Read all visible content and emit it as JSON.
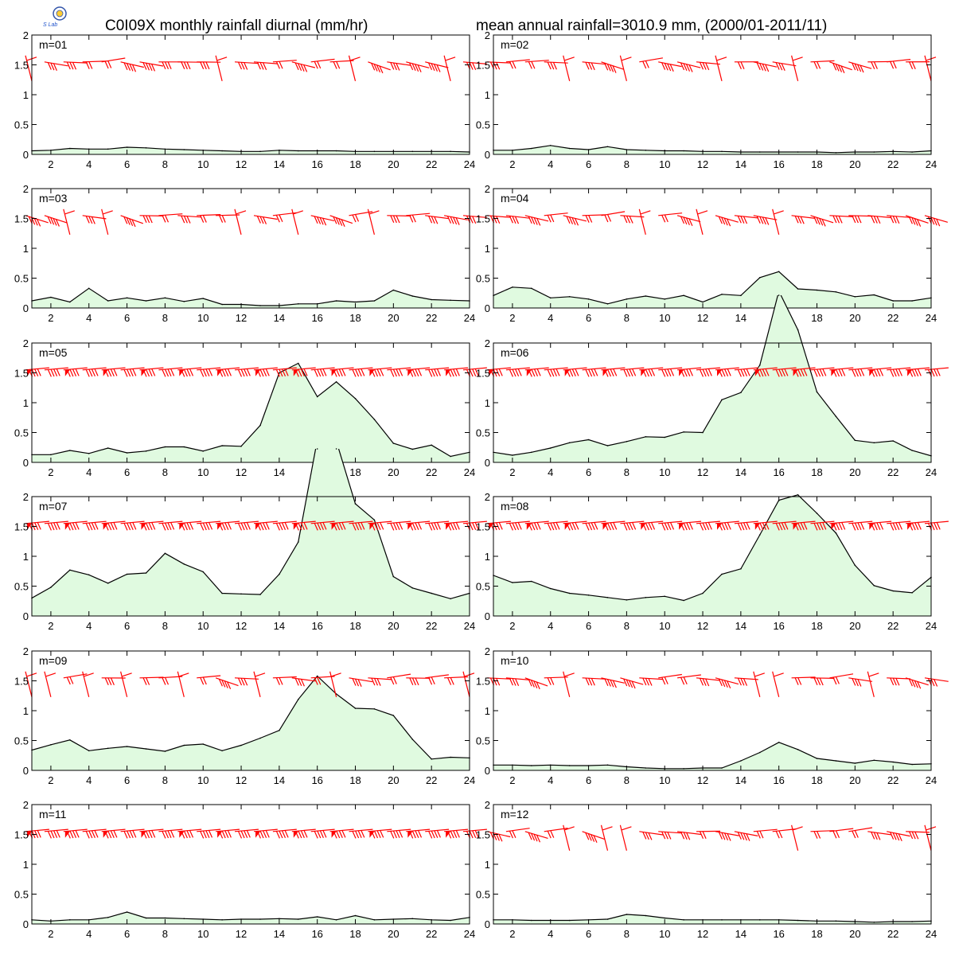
{
  "title_left": "C0I09X monthly rainfall diurnal (mm/hr)",
  "title_right": "mean annual rainfall=3010.9 mm, (2000/01-2011/11)",
  "logo": {
    "text": "S Lab"
  },
  "colors": {
    "fill": "#e0fae0",
    "line": "#000000",
    "wind": "#ff0000",
    "frame": "#000000"
  },
  "chart_data": {
    "type": "area",
    "x": [
      1,
      2,
      3,
      4,
      5,
      6,
      7,
      8,
      9,
      10,
      11,
      12,
      13,
      14,
      15,
      16,
      17,
      18,
      19,
      20,
      21,
      22,
      23,
      24
    ],
    "xticks": [
      2,
      4,
      6,
      8,
      10,
      12,
      14,
      16,
      18,
      20,
      22,
      24
    ],
    "yticks": [
      0,
      0.5,
      1,
      1.5,
      2
    ],
    "ytick_labels": [
      "0",
      "0.5",
      "1",
      "1.5",
      "2"
    ],
    "xlim": [
      1,
      24
    ],
    "ylim": [
      0,
      2
    ],
    "wind_barb_level": 1.55,
    "panels": [
      {
        "label": "m=01",
        "values": [
          0.06,
          0.07,
          0.1,
          0.09,
          0.09,
          0.12,
          0.11,
          0.09,
          0.08,
          0.07,
          0.06,
          0.05,
          0.05,
          0.07,
          0.06,
          0.06,
          0.06,
          0.05,
          0.05,
          0.05,
          0.05,
          0.05,
          0.05,
          0.04
        ]
      },
      {
        "label": "m=02",
        "values": [
          0.07,
          0.07,
          0.1,
          0.15,
          0.1,
          0.08,
          0.13,
          0.08,
          0.07,
          0.06,
          0.06,
          0.05,
          0.05,
          0.04,
          0.04,
          0.04,
          0.04,
          0.04,
          0.03,
          0.04,
          0.04,
          0.05,
          0.04,
          0.06
        ]
      },
      {
        "label": "m=03",
        "values": [
          0.12,
          0.18,
          0.1,
          0.33,
          0.12,
          0.17,
          0.12,
          0.17,
          0.11,
          0.16,
          0.06,
          0.06,
          0.04,
          0.04,
          0.07,
          0.07,
          0.12,
          0.1,
          0.12,
          0.3,
          0.2,
          0.14,
          0.13,
          0.12
        ]
      },
      {
        "label": "m=04",
        "values": [
          0.21,
          0.35,
          0.33,
          0.17,
          0.19,
          0.15,
          0.07,
          0.15,
          0.2,
          0.15,
          0.21,
          0.1,
          0.23,
          0.21,
          0.51,
          0.61,
          0.32,
          0.3,
          0.27,
          0.19,
          0.22,
          0.12,
          0.12,
          0.17
        ]
      },
      {
        "label": "m=05",
        "values": [
          0.13,
          0.13,
          0.2,
          0.15,
          0.24,
          0.16,
          0.19,
          0.26,
          0.26,
          0.19,
          0.28,
          0.27,
          0.62,
          1.5,
          1.66,
          1.1,
          1.35,
          1.07,
          0.72,
          0.32,
          0.22,
          0.29,
          0.1,
          0.17
        ]
      },
      {
        "label": "m=06",
        "values": [
          0.17,
          0.12,
          0.17,
          0.24,
          0.33,
          0.38,
          0.28,
          0.35,
          0.43,
          0.42,
          0.51,
          0.5,
          1.05,
          1.17,
          1.63,
          2.87,
          2.22,
          1.18,
          0.77,
          0.37,
          0.33,
          0.36,
          0.2,
          0.11
        ]
      },
      {
        "label": "m=07",
        "values": [
          0.3,
          0.48,
          0.77,
          0.69,
          0.55,
          0.7,
          0.72,
          1.05,
          0.87,
          0.74,
          0.38,
          0.37,
          0.36,
          0.7,
          1.24,
          2.95,
          2.93,
          1.88,
          1.61,
          0.66,
          0.47,
          0.38,
          0.29,
          0.38
        ]
      },
      {
        "label": "m=08",
        "values": [
          0.68,
          0.56,
          0.58,
          0.46,
          0.38,
          0.35,
          0.31,
          0.27,
          0.31,
          0.33,
          0.26,
          0.38,
          0.7,
          0.79,
          1.36,
          1.94,
          2.03,
          1.72,
          1.39,
          0.85,
          0.51,
          0.42,
          0.39,
          0.65
        ]
      },
      {
        "label": "m=09",
        "values": [
          0.34,
          0.43,
          0.51,
          0.33,
          0.37,
          0.4,
          0.36,
          0.32,
          0.42,
          0.44,
          0.33,
          0.42,
          0.54,
          0.67,
          1.19,
          1.58,
          1.28,
          1.04,
          1.03,
          0.92,
          0.52,
          0.19,
          0.22,
          0.21
        ]
      },
      {
        "label": "m=10",
        "values": [
          0.09,
          0.09,
          0.08,
          0.09,
          0.08,
          0.08,
          0.09,
          0.06,
          0.04,
          0.03,
          0.03,
          0.04,
          0.04,
          0.16,
          0.3,
          0.47,
          0.35,
          0.2,
          0.16,
          0.12,
          0.17,
          0.14,
          0.1,
          0.11
        ]
      },
      {
        "label": "m=11",
        "values": [
          0.07,
          0.05,
          0.07,
          0.07,
          0.11,
          0.2,
          0.1,
          0.1,
          0.09,
          0.08,
          0.07,
          0.08,
          0.08,
          0.09,
          0.08,
          0.12,
          0.07,
          0.14,
          0.07,
          0.08,
          0.09,
          0.07,
          0.06,
          0.11
        ]
      },
      {
        "label": "m=12",
        "values": [
          0.07,
          0.07,
          0.06,
          0.06,
          0.06,
          0.07,
          0.08,
          0.16,
          0.14,
          0.1,
          0.07,
          0.07,
          0.07,
          0.07,
          0.07,
          0.07,
          0.06,
          0.05,
          0.05,
          0.04,
          0.03,
          0.04,
          0.04,
          0.05
        ]
      }
    ]
  }
}
